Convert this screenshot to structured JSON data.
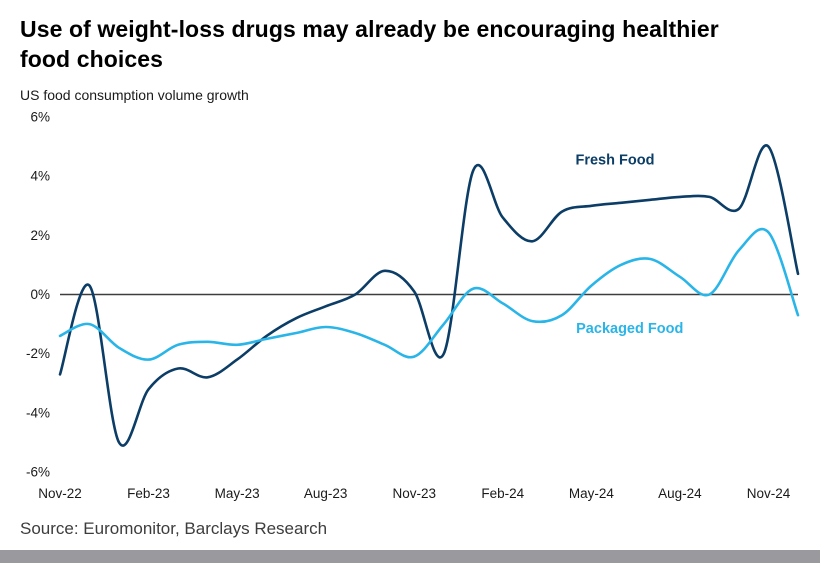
{
  "header": {
    "title": "Use of weight-loss drugs may already be encouraging healthier food choices",
    "subtitle": "US food consumption volume growth"
  },
  "footer": {
    "source": "Source: Euromonitor, Barclays Research"
  },
  "colors": {
    "fresh_food": "#0b3d66",
    "packaged_food": "#29b5e8",
    "zero_line": "#3d3d3d",
    "axis_text": "#1a1a1a",
    "scrollbar": "#9a9a9e"
  },
  "chart_data": {
    "type": "line",
    "title": "US food consumption volume growth",
    "xlabel": "",
    "ylabel": "",
    "ylim": [
      -6,
      6
    ],
    "grid": false,
    "x": [
      "Nov-22",
      "Dec-22",
      "Jan-23",
      "Feb-23",
      "Mar-23",
      "Apr-23",
      "May-23",
      "Jun-23",
      "Jul-23",
      "Aug-23",
      "Sep-23",
      "Oct-23",
      "Nov-23",
      "Dec-23",
      "Jan-24",
      "Feb-24",
      "Mar-24",
      "Apr-24",
      "May-24",
      "Jun-24",
      "Jul-24",
      "Aug-24",
      "Sep-24",
      "Oct-24",
      "Nov-24",
      "Dec-24"
    ],
    "series": [
      {
        "name": "Fresh Food",
        "color": "#0b3d66",
        "values": [
          -2.7,
          0.3,
          -5.0,
          -3.2,
          -2.5,
          -2.8,
          -2.2,
          -1.4,
          -0.8,
          -0.4,
          0.0,
          0.8,
          0.1,
          -2.0,
          4.2,
          2.6,
          1.8,
          2.8,
          3.0,
          3.1,
          3.2,
          3.3,
          3.3,
          2.9,
          5.0,
          0.7
        ]
      },
      {
        "name": "Packaged Food",
        "color": "#29b5e8",
        "values": [
          -1.4,
          -1.0,
          -1.8,
          -2.2,
          -1.7,
          -1.6,
          -1.7,
          -1.5,
          -1.3,
          -1.1,
          -1.3,
          -1.7,
          -2.1,
          -1.0,
          0.2,
          -0.3,
          -0.9,
          -0.7,
          0.3,
          1.0,
          1.2,
          0.6,
          0.0,
          1.5,
          2.1,
          -0.7
        ]
      }
    ],
    "y_ticks": [
      {
        "value": 6,
        "label": "6%"
      },
      {
        "value": 4,
        "label": "4%"
      },
      {
        "value": 2,
        "label": "2%"
      },
      {
        "value": 0,
        "label": "0%"
      },
      {
        "value": -2,
        "label": "-2%"
      },
      {
        "value": -4,
        "label": "-4%"
      },
      {
        "value": -6,
        "label": "-6%"
      }
    ],
    "x_ticks": [
      {
        "index": 0,
        "label": "Nov-22"
      },
      {
        "index": 3,
        "label": "Feb-23"
      },
      {
        "index": 6,
        "label": "May-23"
      },
      {
        "index": 9,
        "label": "Aug-23"
      },
      {
        "index": 12,
        "label": "Nov-23"
      },
      {
        "index": 15,
        "label": "Feb-24"
      },
      {
        "index": 18,
        "label": "May-24"
      },
      {
        "index": 21,
        "label": "Aug-24"
      },
      {
        "index": 24,
        "label": "Nov-24"
      }
    ],
    "annotations": [
      {
        "label": "Fresh Food",
        "x_index": 18.8,
        "y_value": 4.4,
        "color": "#0b3d66"
      },
      {
        "label": "Packaged Food",
        "x_index": 19.3,
        "y_value": -1.3,
        "color": "#29b5e8"
      }
    ],
    "legend_position": "inline-labels"
  }
}
